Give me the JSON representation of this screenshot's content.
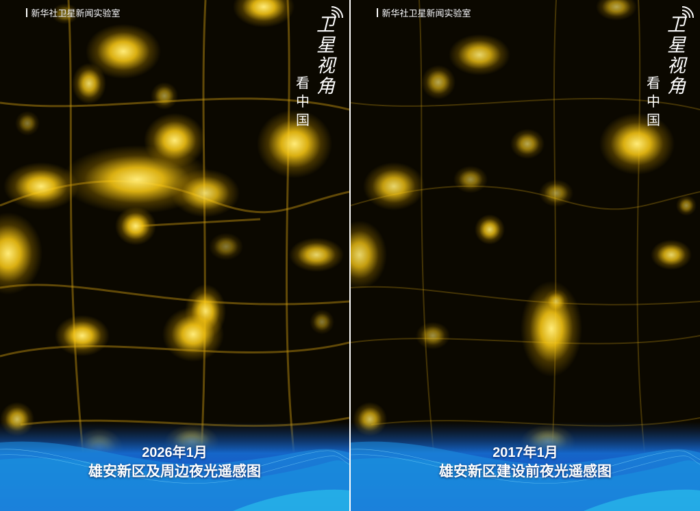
{
  "panels": [
    {
      "credit": "新华社卫星新闻实验室",
      "logo_main": "卫星视角",
      "logo_sub": "看中国",
      "date": "2026年1月",
      "caption": "雄安新区及周边夜光遥感图"
    },
    {
      "credit": "新华社卫星新闻实验室",
      "logo_main": "卫星视角",
      "logo_sub": "看中国",
      "date": "2017年1月",
      "caption": "雄安新区建设前夜光遥感图"
    }
  ],
  "colors": {
    "light": "#ffd21a",
    "background": "#0b0800",
    "banner_blue": "#1a5fd6",
    "banner_cyan": "#29c6e8"
  }
}
